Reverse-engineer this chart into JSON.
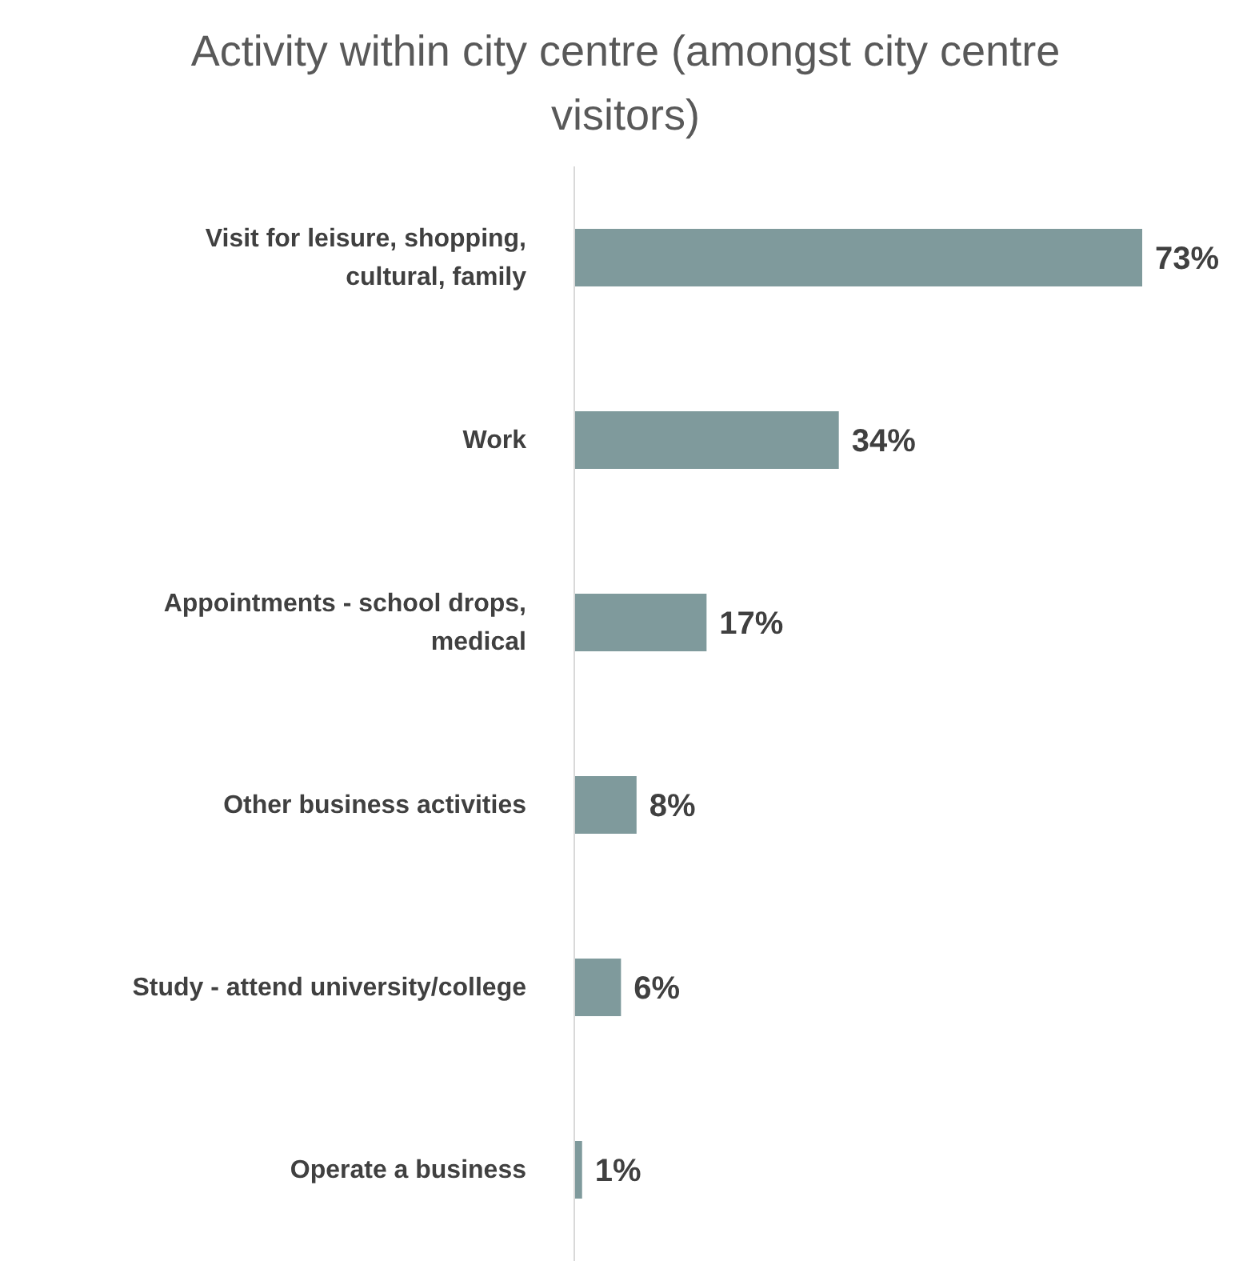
{
  "chart_data": {
    "type": "bar",
    "orientation": "horizontal",
    "title": "Activity within city centre (amongst city centre visitors)",
    "categories": [
      "Visit for leisure, shopping, cultural, family",
      "Work",
      "Appointments - school drops, medical",
      "Other business activities",
      "Study - attend university/college",
      "Operate a business"
    ],
    "values": [
      73,
      34,
      17,
      8,
      6,
      1
    ],
    "color": "#7f9a9c",
    "value_labels": [
      "73%",
      "34%",
      "17%",
      "8%",
      "6%",
      "1%"
    ],
    "grid": false,
    "legend": false
  }
}
